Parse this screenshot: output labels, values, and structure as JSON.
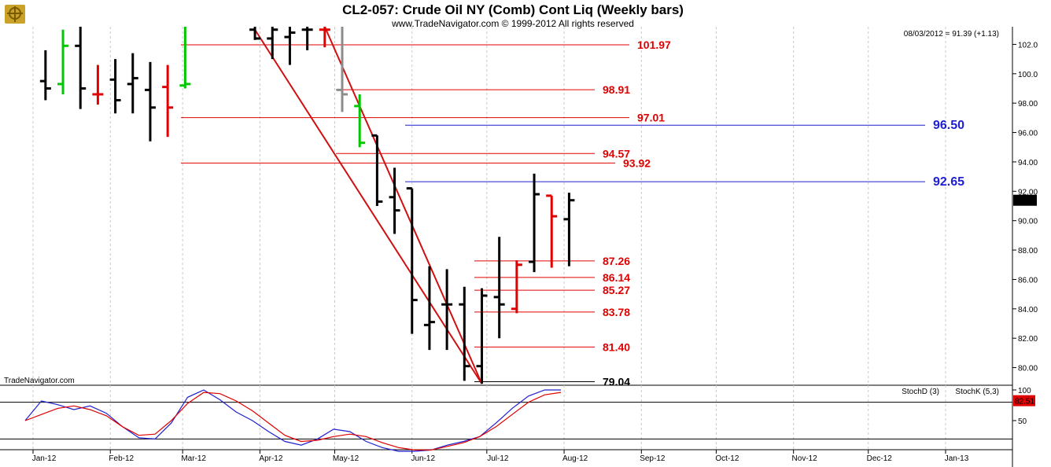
{
  "header": {
    "title": "CL2-057:  Crude Oil NY (Comb) Cont Liq  (Weekly bars)",
    "subtitle": "www.TradeNavigator.com © 1999-2012 All rights reserved",
    "info": "08/03/2012 = 91.39 (+1.13)",
    "watermark": "TradeNavigator.com",
    "logo": "trade-navigator-logo"
  },
  "chart_data": {
    "type": "ohlc",
    "title": "CL2-057:  Crude Oil NY (Comb) Cont Liq  (Weekly bars)",
    "price_axis": {
      "ticks": [
        "80.00",
        "82.00",
        "84.00",
        "86.00",
        "88.00",
        "90.00",
        "92.00",
        "94.00",
        "96.00",
        "98.00",
        "100.0",
        "102.0"
      ],
      "ylim": [
        78.8,
        103.2
      ]
    },
    "last_price": "91.39",
    "x_ticks": [
      "Jan-12",
      "Feb-12",
      "Mar-12",
      "Apr-12",
      "May-12",
      "Jun-12",
      "Jul-12",
      "Aug-12",
      "Sep-12",
      "Oct-12",
      "Nov-12",
      "Dec-12",
      "Jan-13"
    ],
    "bars": [
      {
        "date": "2012-01-06",
        "o": 99.5,
        "h": 101.6,
        "l": 98.2,
        "c": 99.0,
        "color": "black"
      },
      {
        "date": "2012-01-13",
        "o": 99.3,
        "h": 103.0,
        "l": 98.6,
        "c": 101.9,
        "color": "green"
      },
      {
        "date": "2012-01-20",
        "o": 101.9,
        "h": 103.2,
        "l": 97.6,
        "c": 99.0,
        "color": "black"
      },
      {
        "date": "2012-01-27",
        "o": 98.6,
        "h": 100.6,
        "l": 97.9,
        "c": 98.6,
        "color": "red"
      },
      {
        "date": "2012-02-03",
        "o": 99.6,
        "h": 101.0,
        "l": 97.3,
        "c": 98.2,
        "color": "black"
      },
      {
        "date": "2012-02-10",
        "o": 99.3,
        "h": 101.4,
        "l": 97.3,
        "c": 99.7,
        "color": "black"
      },
      {
        "date": "2012-02-17",
        "o": 98.9,
        "h": 100.8,
        "l": 95.4,
        "c": 97.7,
        "color": "black"
      },
      {
        "date": "2012-02-24",
        "o": 99.1,
        "h": 100.6,
        "l": 95.7,
        "c": 97.7,
        "color": "red"
      },
      {
        "date": "2012-03-02",
        "o": 99.2,
        "h": 103.2,
        "l": 99.0,
        "c": 99.3,
        "color": "green"
      },
      {
        "date": "2012-03-30",
        "o": 103.0,
        "h": 103.2,
        "l": 102.3,
        "c": 102.4,
        "color": "black"
      },
      {
        "date": "2012-04-06",
        "o": 102.4,
        "h": 103.2,
        "l": 101.0,
        "c": 103.0,
        "color": "black"
      },
      {
        "date": "2012-04-13",
        "o": 102.5,
        "h": 103.2,
        "l": 100.6,
        "c": 102.8,
        "color": "black"
      },
      {
        "date": "2012-04-20",
        "o": 103.0,
        "h": 103.2,
        "l": 101.6,
        "c": 103.0,
        "color": "black"
      },
      {
        "date": "2012-04-27",
        "o": 103.0,
        "h": 103.2,
        "l": 101.8,
        "c": 103.0,
        "color": "red"
      },
      {
        "date": "2012-05-04",
        "o": 98.9,
        "h": 103.2,
        "l": 97.4,
        "c": 98.6,
        "color": "gray"
      },
      {
        "date": "2012-05-11",
        "o": 97.8,
        "h": 98.6,
        "l": 95.0,
        "c": 95.3,
        "color": "green"
      },
      {
        "date": "2012-05-18",
        "o": 95.8,
        "h": 95.8,
        "l": 91.0,
        "c": 91.3,
        "color": "black"
      },
      {
        "date": "2012-05-25",
        "o": 91.6,
        "h": 93.6,
        "l": 89.1,
        "c": 90.7,
        "color": "black"
      },
      {
        "date": "2012-06-01",
        "o": 92.2,
        "h": 92.2,
        "l": 82.3,
        "c": 84.6,
        "color": "black"
      },
      {
        "date": "2012-06-08",
        "o": 82.9,
        "h": 86.9,
        "l": 81.2,
        "c": 83.1,
        "color": "black"
      },
      {
        "date": "2012-06-15",
        "o": 84.3,
        "h": 86.7,
        "l": 81.2,
        "c": 84.3,
        "color": "black"
      },
      {
        "date": "2012-06-22",
        "o": 84.3,
        "h": 85.5,
        "l": 79.1,
        "c": 80.1,
        "color": "black"
      },
      {
        "date": "2012-06-29",
        "o": 80.1,
        "h": 85.4,
        "l": 78.9,
        "c": 84.9,
        "color": "black"
      },
      {
        "date": "2012-07-06",
        "o": 84.8,
        "h": 88.9,
        "l": 82.0,
        "c": 84.3,
        "color": "black"
      },
      {
        "date": "2012-07-13",
        "o": 84.0,
        "h": 87.3,
        "l": 83.7,
        "c": 87.0,
        "color": "red"
      },
      {
        "date": "2012-07-20",
        "o": 87.2,
        "h": 93.2,
        "l": 86.5,
        "c": 91.8,
        "color": "black"
      },
      {
        "date": "2012-07-27",
        "o": 91.7,
        "h": 91.7,
        "l": 86.8,
        "c": 90.3,
        "color": "red"
      },
      {
        "date": "2012-08-03",
        "o": 90.1,
        "h": 91.9,
        "l": 86.9,
        "c": 91.39,
        "color": "black"
      }
    ],
    "levels": [
      {
        "label": "101.97",
        "value": 101.97,
        "color": "red"
      },
      {
        "label": "98.91",
        "value": 98.91,
        "color": "red"
      },
      {
        "label": "97.01",
        "value": 97.01,
        "color": "red"
      },
      {
        "label": "94.57",
        "value": 94.57,
        "color": "red"
      },
      {
        "label": "93.92",
        "value": 93.92,
        "color": "red"
      },
      {
        "label": "87.26",
        "value": 87.26,
        "color": "red"
      },
      {
        "label": "86.14",
        "value": 86.14,
        "color": "red"
      },
      {
        "label": "85.27",
        "value": 85.27,
        "color": "red"
      },
      {
        "label": "83.78",
        "value": 83.78,
        "color": "red"
      },
      {
        "label": "81.40",
        "value": 81.4,
        "color": "red"
      },
      {
        "label": "79.04",
        "value": 79.04,
        "color": "black"
      },
      {
        "label": "96.50",
        "value": 96.5,
        "color": "blue"
      },
      {
        "label": "92.65",
        "value": 92.65,
        "color": "blue"
      }
    ],
    "trendlines": [
      {
        "from": {
          "date": "2012-03-30",
          "price": 103.0
        },
        "to": {
          "date": "2012-06-29",
          "price": 78.9
        }
      },
      {
        "from": {
          "date": "2012-04-27",
          "price": 103.2
        },
        "to": {
          "date": "2012-06-29",
          "price": 78.9
        }
      }
    ],
    "indicator": {
      "ticks": [
        "50",
        "100"
      ],
      "ylim": [
        0,
        100
      ],
      "last_value": "82.51",
      "legend": [
        {
          "name": "StochD (3)",
          "color": "#e00000"
        },
        {
          "name": "StochK (5,3)",
          "color": "#1f1fd0"
        }
      ],
      "stochk": [
        50,
        82,
        76,
        68,
        74,
        62,
        40,
        22,
        20,
        46,
        88,
        100,
        84,
        64,
        50,
        32,
        16,
        10,
        20,
        36,
        32,
        16,
        6,
        0,
        0,
        2,
        10,
        16,
        24,
        46,
        70,
        90,
        100,
        100
      ],
      "stochd": [
        50,
        60,
        70,
        74,
        68,
        58,
        40,
        26,
        28,
        50,
        78,
        96,
        94,
        82,
        66,
        46,
        26,
        16,
        18,
        24,
        28,
        24,
        14,
        6,
        2,
        2,
        8,
        14,
        24,
        40,
        60,
        80,
        92,
        96
      ]
    }
  }
}
